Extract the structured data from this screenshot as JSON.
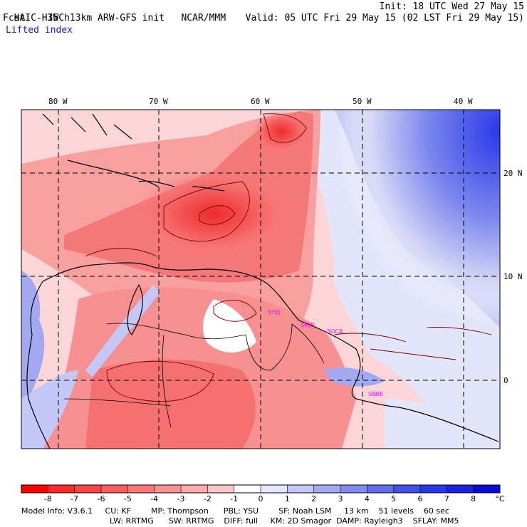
{
  "header": {
    "model_title": "HAIC-HIWC 13km ARW-GFS init",
    "org": "NCAR/MMM",
    "init_time": "Init: 18 UTC Wed 27 May 15",
    "forecast_hour": "Fcst:   35 h",
    "valid_time": "Valid: 05 UTC Fri 29 May 15 (02 LST Fri 29 May 15)",
    "field_name": "Lifted index"
  },
  "map": {
    "longitude_labels": [
      "80 W",
      "70 W",
      "60 W",
      "50 W",
      "40 W"
    ],
    "latitude_labels": [
      "20 N",
      "10 N",
      "0"
    ],
    "stations": [
      "SYEJ",
      "SMJP",
      "SOCA",
      "SBBE"
    ],
    "colors": {
      "strong_negative": "#ee1c1c",
      "negative": "#f87e7e",
      "weak_negative": "#fcc6c6",
      "neutral": "#ffffff",
      "weak_positive": "#d6d9f6",
      "positive": "#7b86ee",
      "strong_positive": "#2a39e8",
      "station_color": "#ff00ff"
    }
  },
  "colorbar": {
    "ticks": [
      "-8",
      "-7",
      "-6",
      "-5",
      "-4",
      "-3",
      "-2",
      "-1",
      "0",
      "1",
      "2",
      "3",
      "4",
      "5",
      "6",
      "7",
      "8"
    ],
    "unit": "°C",
    "colors": [
      "#ff0000",
      "#fe2a2a",
      "#fd4444",
      "#fc5e5e",
      "#fb7777",
      "#fa9191",
      "#fbabab",
      "#fcc6c6",
      "#ffffff",
      "#e3e5fb",
      "#c4c8f6",
      "#a3a9f1",
      "#828bec",
      "#616cea",
      "#4150e8",
      "#2a39e8",
      "#1a22e0",
      "#0a0ad8"
    ]
  },
  "footer": {
    "line1": "Model Info: V3.6.1     CU: KF        MP: Thompson      PBL: YSU        SF: Noah LSM     13 km    51 levels    60 sec",
    "line2": "LW: RRTMG      SW: RRTMG    DIFF: full     KM: 2D Smagor  DAMP: Rayleigh3    SFLAY: MM5"
  }
}
